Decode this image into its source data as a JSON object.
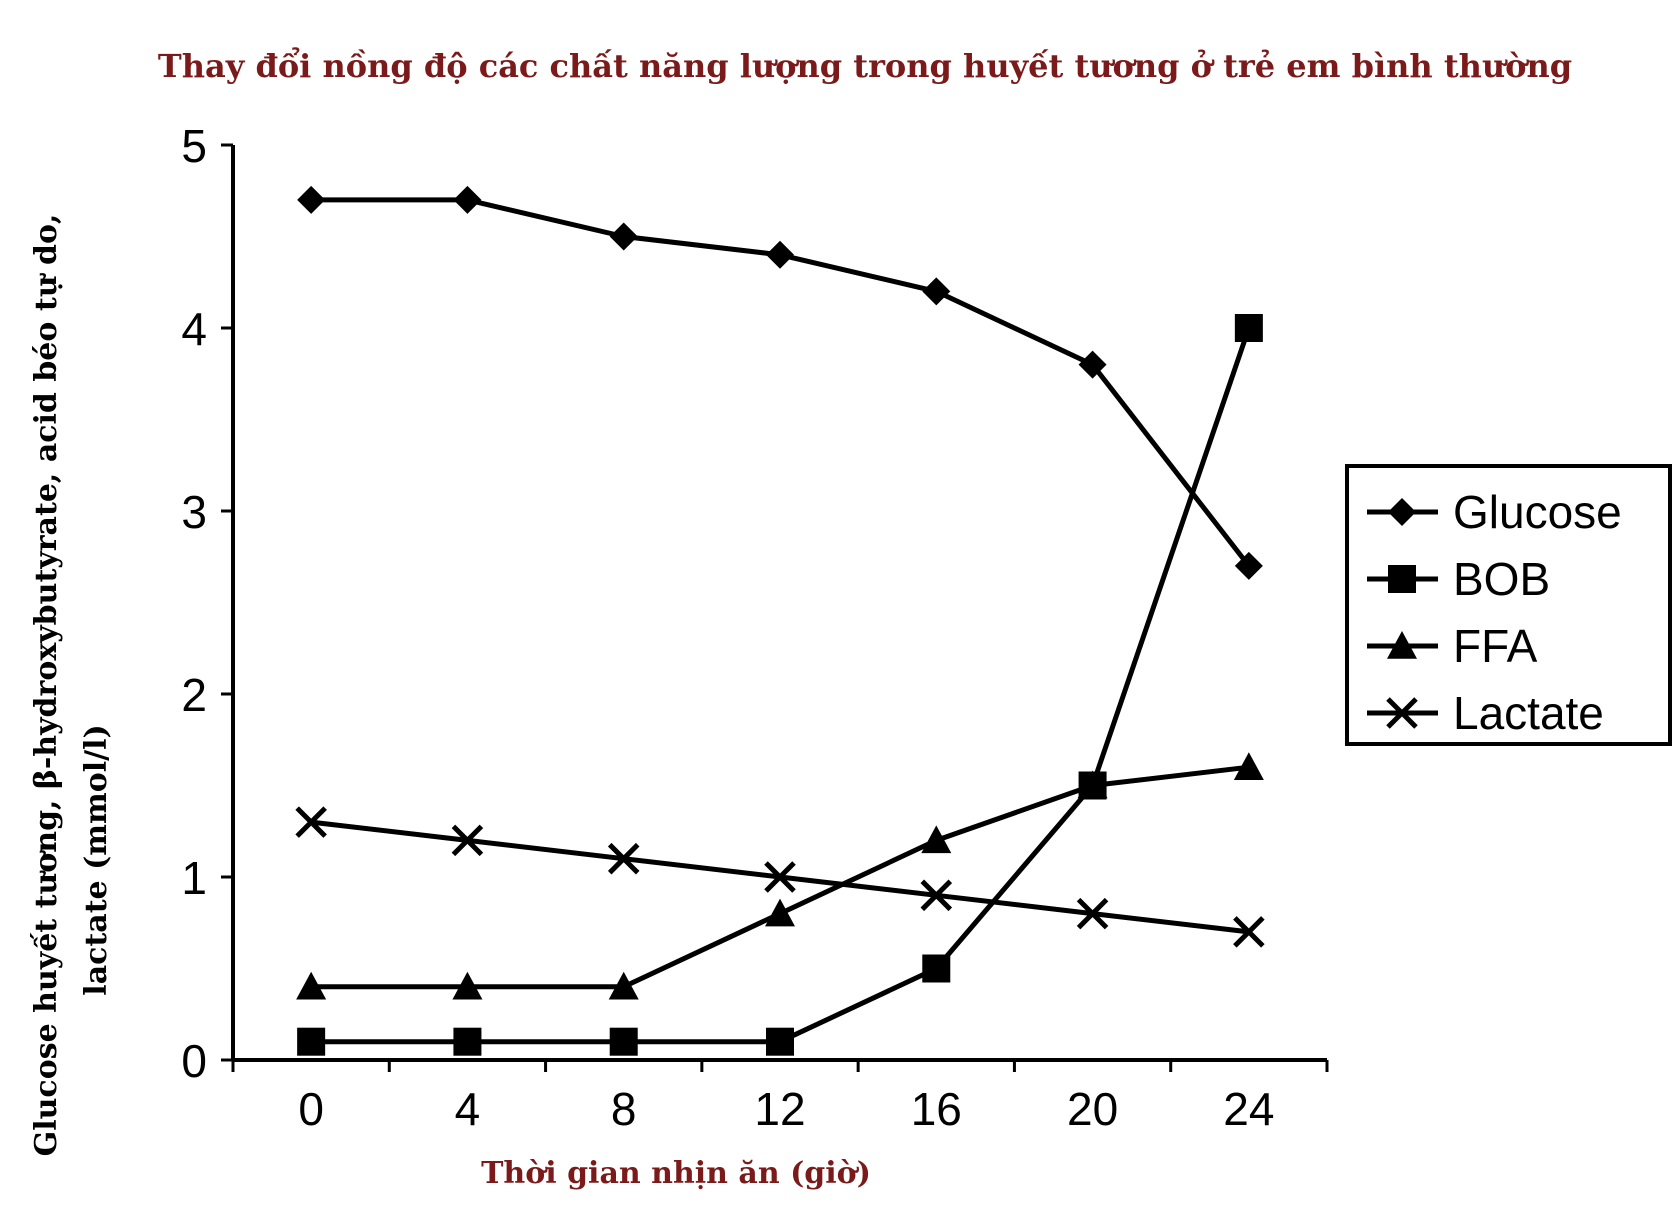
{
  "chart_data": {
    "type": "line",
    "title": "Thay đổi nồng độ các chất năng lượng trong huyết tương ở trẻ em bình thường",
    "xlabel": "Thời gian nhịn ăn (giờ)",
    "ylabel_lines": [
      "Glucose huyết tương, β-hydroxybutyrate, acid béo tự do,",
      "lactate (mmol/l)"
    ],
    "x": [
      0,
      4,
      8,
      12,
      16,
      20,
      24
    ],
    "xticks": [
      "0",
      "4",
      "8",
      "12",
      "16",
      "20",
      "24"
    ],
    "yticks": [
      "0",
      "1",
      "2",
      "3",
      "4",
      "5"
    ],
    "xlim": [
      -2,
      26
    ],
    "ylim": [
      0,
      5
    ],
    "grid": false,
    "legend_position": "right",
    "series": [
      {
        "name": "Glucose",
        "marker": "diamond",
        "values": [
          4.7,
          4.7,
          4.5,
          4.4,
          4.2,
          3.8,
          2.7
        ]
      },
      {
        "name": "BOB",
        "marker": "square",
        "values": [
          0.1,
          0.1,
          0.1,
          0.1,
          0.5,
          1.5,
          4.0
        ]
      },
      {
        "name": "FFA",
        "marker": "triangle",
        "values": [
          0.4,
          0.4,
          0.4,
          0.8,
          1.2,
          1.5,
          1.6
        ]
      },
      {
        "name": "Lactate",
        "marker": "x",
        "values": [
          1.3,
          1.2,
          1.1,
          1.0,
          0.9,
          0.8,
          0.7
        ]
      }
    ],
    "colors": {
      "line": "#000000",
      "title": "#7b1a1a"
    }
  }
}
